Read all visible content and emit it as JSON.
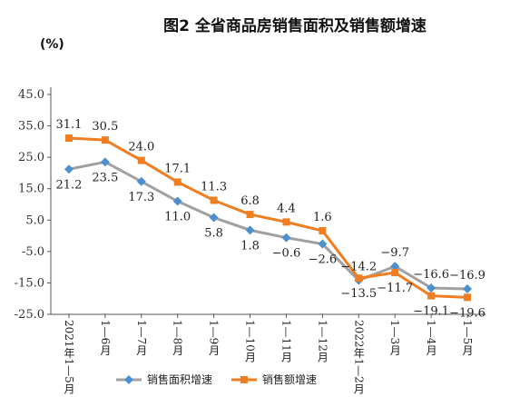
{
  "chart_data": {
    "type": "line",
    "title": "图2 全省商品房销售面积及销售额增速",
    "ylabel": "(%)",
    "xlabel": "",
    "ylim": [
      -25,
      45
    ],
    "yticks": [
      "45.0",
      "35.0",
      "25.0",
      "15.0",
      "5.0",
      "-5.0",
      "-15.0",
      "-25.0"
    ],
    "ytick_values": [
      45,
      35,
      25,
      15,
      5,
      -5,
      -15,
      -25
    ],
    "categories": [
      "2021年1—5月",
      "1—6月",
      "1—7月",
      "1—8月",
      "1—9月",
      "1—10月",
      "1—11月",
      "1—12月",
      "2022年1—2月",
      "1—3月",
      "1—4月",
      "1—5月"
    ],
    "grid": false,
    "legend_position": "bottom",
    "series": [
      {
        "name": "销售面积增速",
        "color": "#a0a0a0",
        "marker_color": "#4a90d0",
        "marker": "diamond",
        "values": [
          21.2,
          23.5,
          17.3,
          11.0,
          5.8,
          1.8,
          -0.6,
          -2.6,
          -14.2,
          -9.7,
          -16.6,
          -16.9
        ],
        "labels": [
          "21.2",
          "23.5",
          "17.3",
          "11.0",
          "5.8",
          "1.8",
          "−0.6",
          "−2.6",
          "−14.2",
          "−9.7",
          "−16.6",
          "−16.9"
        ]
      },
      {
        "name": "销售额增速",
        "color": "#ef7d22",
        "marker_color": "#ef7d22",
        "marker": "square",
        "values": [
          31.1,
          30.5,
          24.0,
          17.1,
          11.3,
          6.8,
          4.4,
          1.6,
          -13.5,
          -11.7,
          -19.1,
          -19.6
        ],
        "labels": [
          "31.1",
          "30.5",
          "24.0",
          "17.1",
          "11.3",
          "6.8",
          "4.4",
          "1.6",
          "−13.5",
          "−11.7",
          "−19.1",
          "−19.6"
        ]
      }
    ]
  }
}
